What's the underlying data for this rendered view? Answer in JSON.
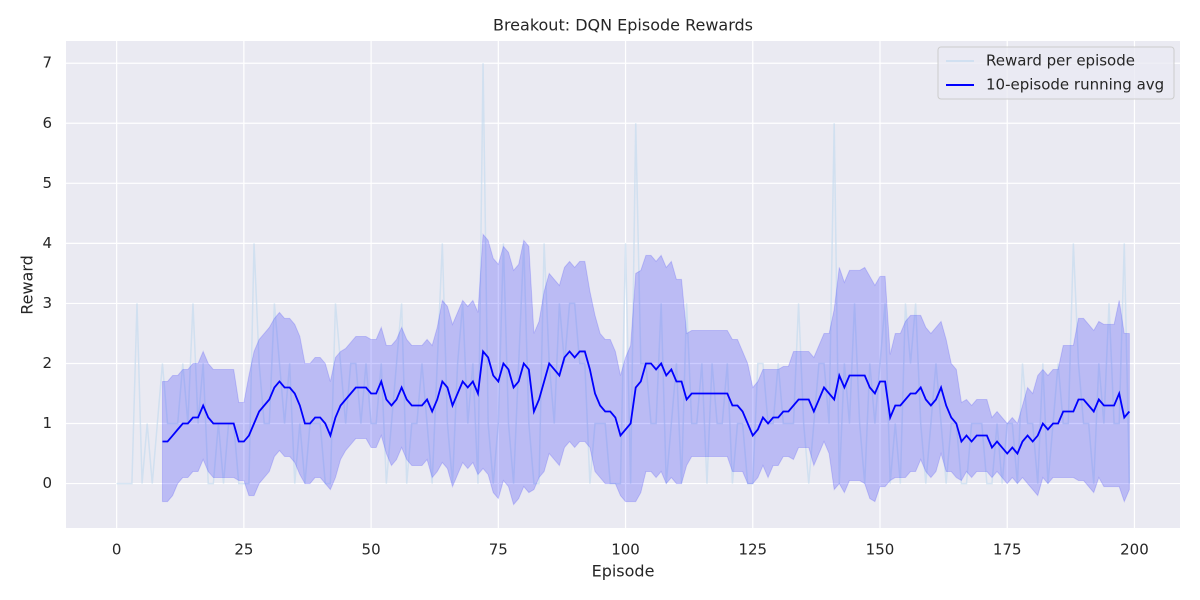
{
  "chart_data": {
    "type": "line",
    "title": "Breakout: DQN Episode Rewards",
    "x_label": "Episode",
    "y_label": "Reward",
    "xlim": [
      -9.95,
      208.95
    ],
    "ylim": [
      -0.74,
      7.37
    ],
    "xticks": [
      0,
      25,
      50,
      75,
      100,
      125,
      150,
      175,
      200
    ],
    "yticks": [
      0,
      1,
      2,
      3,
      4,
      5,
      6,
      7
    ],
    "grid": true,
    "legend": "upper right",
    "series": [
      {
        "name": "Reward per episode",
        "color": "#c6dbef",
        "x": [
          0,
          1,
          2,
          3,
          4,
          5,
          6,
          7,
          8,
          9,
          10,
          11,
          12,
          13,
          14,
          15,
          16,
          17,
          18,
          19,
          20,
          21,
          22,
          23,
          24,
          25,
          26,
          27,
          28,
          29,
          30,
          31,
          32,
          33,
          34,
          35,
          36,
          37,
          38,
          39,
          40,
          41,
          42,
          43,
          44,
          45,
          46,
          47,
          48,
          49,
          50,
          51,
          52,
          53,
          54,
          55,
          56,
          57,
          58,
          59,
          60,
          61,
          62,
          63,
          64,
          65,
          66,
          67,
          68,
          69,
          70,
          71,
          72,
          73,
          74,
          75,
          76,
          77,
          78,
          79,
          80,
          81,
          82,
          83,
          84,
          85,
          86,
          87,
          88,
          89,
          90,
          91,
          92,
          93,
          94,
          95,
          96,
          97,
          98,
          99,
          100,
          101,
          102,
          103,
          104,
          105,
          106,
          107,
          108,
          109,
          110,
          111,
          112,
          113,
          114,
          115,
          116,
          117,
          118,
          119,
          120,
          121,
          122,
          123,
          124,
          125,
          126,
          127,
          128,
          129,
          130,
          131,
          132,
          133,
          134,
          135,
          136,
          137,
          138,
          139,
          140,
          141,
          142,
          143,
          144,
          145,
          146,
          147,
          148,
          149,
          150,
          151,
          152,
          153,
          154,
          155,
          156,
          157,
          158,
          159,
          160,
          161,
          162,
          163,
          164,
          165,
          166,
          167,
          168,
          169,
          170,
          171,
          172,
          173,
          174,
          175,
          176,
          177,
          178,
          179,
          180,
          181,
          182,
          183,
          184,
          185,
          186,
          187,
          188,
          189,
          190,
          191,
          192,
          193,
          194,
          195,
          196,
          197,
          198,
          199
        ],
        "values": [
          0,
          0,
          0,
          0,
          3,
          0,
          1,
          0,
          1,
          2,
          1,
          1,
          1,
          2,
          1,
          3,
          1,
          2,
          0,
          0,
          1,
          0,
          1,
          1,
          0,
          0,
          0,
          4,
          2,
          1,
          1,
          3,
          2,
          1,
          2,
          0,
          1,
          0,
          1,
          1,
          1,
          0,
          0,
          3,
          2,
          1,
          2,
          2,
          1,
          2,
          1,
          1,
          2,
          0,
          1,
          2,
          3,
          0,
          1,
          1,
          2,
          1,
          0,
          2,
          4,
          1,
          0,
          2,
          3,
          1,
          2,
          0,
          7,
          1,
          0,
          1,
          4,
          1,
          0,
          2,
          4,
          1,
          0,
          0,
          4,
          2,
          1,
          3,
          2,
          3,
          3,
          2,
          2,
          0,
          1,
          1,
          1,
          0,
          0,
          0,
          4,
          0,
          6,
          2,
          2,
          1,
          1,
          3,
          0,
          1,
          2,
          0,
          3,
          1,
          1,
          2,
          0,
          2,
          1,
          1,
          2,
          0,
          1,
          1,
          0,
          0,
          2,
          2,
          1,
          1,
          2,
          1,
          1,
          1,
          3,
          1,
          0,
          1,
          2,
          2,
          1,
          6,
          0,
          2,
          1,
          3,
          1,
          0,
          2,
          1,
          2,
          3,
          0,
          1,
          0,
          3,
          2,
          3,
          1,
          0,
          1,
          2,
          1,
          0,
          1,
          1,
          0,
          0,
          1,
          1,
          1,
          0,
          0,
          1,
          0,
          1,
          1,
          0,
          2,
          1,
          1,
          0,
          2,
          0,
          1,
          2,
          1,
          1,
          4,
          2,
          1,
          1,
          0,
          2,
          1,
          3,
          1,
          1,
          4,
          0
        ]
      },
      {
        "name": "10-episode running avg",
        "color": "#0000ff",
        "band_color": "#0000ff",
        "x": [
          9,
          10,
          11,
          12,
          13,
          14,
          15,
          16,
          17,
          18,
          19,
          20,
          21,
          22,
          23,
          24,
          25,
          26,
          27,
          28,
          29,
          30,
          31,
          32,
          33,
          34,
          35,
          36,
          37,
          38,
          39,
          40,
          41,
          42,
          43,
          44,
          45,
          46,
          47,
          48,
          49,
          50,
          51,
          52,
          53,
          54,
          55,
          56,
          57,
          58,
          59,
          60,
          61,
          62,
          63,
          64,
          65,
          66,
          67,
          68,
          69,
          70,
          71,
          72,
          73,
          74,
          75,
          76,
          77,
          78,
          79,
          80,
          81,
          82,
          83,
          84,
          85,
          86,
          87,
          88,
          89,
          90,
          91,
          92,
          93,
          94,
          95,
          96,
          97,
          98,
          99,
          100,
          101,
          102,
          103,
          104,
          105,
          106,
          107,
          108,
          109,
          110,
          111,
          112,
          113,
          114,
          115,
          116,
          117,
          118,
          119,
          120,
          121,
          122,
          123,
          124,
          125,
          126,
          127,
          128,
          129,
          130,
          131,
          132,
          133,
          134,
          135,
          136,
          137,
          138,
          139,
          140,
          141,
          142,
          143,
          144,
          145,
          146,
          147,
          148,
          149,
          150,
          151,
          152,
          153,
          154,
          155,
          156,
          157,
          158,
          159,
          160,
          161,
          162,
          163,
          164,
          165,
          166,
          167,
          168,
          169,
          170,
          171,
          172,
          173,
          174,
          175,
          176,
          177,
          178,
          179,
          180,
          181,
          182,
          183,
          184,
          185,
          186,
          187,
          188,
          189,
          190,
          191,
          192,
          193,
          194,
          195,
          196,
          197,
          198,
          199
        ],
        "values": [
          0.7,
          0.7,
          0.8,
          0.9,
          1.0,
          1.0,
          1.1,
          1.1,
          1.3,
          1.1,
          1.0,
          1.0,
          1.0,
          1.0,
          1.0,
          0.7,
          0.7,
          0.8,
          1.0,
          1.2,
          1.3,
          1.4,
          1.6,
          1.7,
          1.6,
          1.6,
          1.5,
          1.3,
          1.0,
          1.0,
          1.1,
          1.1,
          1.0,
          0.8,
          1.1,
          1.3,
          1.4,
          1.5,
          1.6,
          1.6,
          1.6,
          1.5,
          1.5,
          1.7,
          1.4,
          1.3,
          1.4,
          1.6,
          1.4,
          1.3,
          1.3,
          1.3,
          1.4,
          1.2,
          1.4,
          1.7,
          1.6,
          1.3,
          1.5,
          1.7,
          1.6,
          1.7,
          1.5,
          2.2,
          2.1,
          1.8,
          1.7,
          2.0,
          1.9,
          1.6,
          1.7,
          2.0,
          1.9,
          1.2,
          1.4,
          1.7,
          2.0,
          1.9,
          1.8,
          2.1,
          2.2,
          2.1,
          2.2,
          2.2,
          1.9,
          1.5,
          1.3,
          1.2,
          1.2,
          1.1,
          0.8,
          0.9,
          1.0,
          1.6,
          1.7,
          2.0,
          2.0,
          1.9,
          2.0,
          1.8,
          1.9,
          1.7,
          1.7,
          1.4,
          1.5,
          1.5,
          1.5,
          1.5,
          1.5,
          1.5,
          1.5,
          1.5,
          1.3,
          1.3,
          1.2,
          1.0,
          0.8,
          0.9,
          1.1,
          1.0,
          1.1,
          1.1,
          1.2,
          1.2,
          1.3,
          1.4,
          1.4,
          1.4,
          1.2,
          1.4,
          1.6,
          1.5,
          1.4,
          1.8,
          1.6,
          1.8,
          1.8,
          1.8,
          1.8,
          1.6,
          1.5,
          1.7,
          1.7,
          1.1,
          1.3,
          1.3,
          1.4,
          1.5,
          1.5,
          1.6,
          1.4,
          1.3,
          1.4,
          1.6,
          1.3,
          1.1,
          1.0,
          0.7,
          0.8,
          0.7,
          0.8,
          0.8,
          0.8,
          0.6,
          0.7,
          0.6,
          0.5,
          0.6,
          0.5,
          0.7,
          0.8,
          0.7,
          0.8,
          1.0,
          0.9,
          1.0,
          1.0,
          1.2,
          1.2,
          1.2,
          1.4,
          1.4,
          1.3,
          1.2,
          1.4,
          1.3,
          1.3,
          1.3,
          1.5,
          1.1,
          1.2
        ],
        "band_lower": [
          -0.3,
          -0.3,
          -0.2,
          0,
          0.1,
          0.1,
          0.2,
          0.2,
          0.4,
          0.2,
          0.1,
          0.1,
          0.1,
          0.1,
          0.1,
          0.05,
          0.05,
          -0.2,
          -0.2,
          0,
          0.1,
          0.2,
          0.45,
          0.55,
          0.45,
          0.45,
          0.35,
          0.15,
          0,
          0,
          0.1,
          0.1,
          0,
          -0.1,
          0.1,
          0.4,
          0.55,
          0.65,
          0.75,
          0.75,
          0.75,
          0.6,
          0.6,
          0.8,
          0.5,
          0.3,
          0.4,
          0.6,
          0.4,
          0.3,
          0.3,
          0.3,
          0.4,
          0.1,
          0.2,
          0.35,
          0.25,
          -0.05,
          0.15,
          0.35,
          0.25,
          0.35,
          0.15,
          0.25,
          0.15,
          -0.15,
          -0.25,
          0.05,
          -0.05,
          -0.35,
          -0.25,
          -0.05,
          -0.15,
          -0.1,
          0.1,
          0.2,
          0.5,
          0.4,
          0.3,
          0.6,
          0.7,
          0.6,
          0.7,
          0.7,
          0.6,
          0.2,
          0.1,
          0,
          0,
          0,
          -0.2,
          -0.3,
          -0.3,
          -0.3,
          -0.15,
          0.2,
          0.2,
          0.1,
          0.2,
          0,
          0.1,
          0,
          0,
          0.3,
          0.45,
          0.45,
          0.45,
          0.45,
          0.45,
          0.45,
          0.45,
          0.45,
          0.2,
          0.2,
          0.2,
          0,
          0,
          0.1,
          0.3,
          0.1,
          0.3,
          0.3,
          0.45,
          0.45,
          0.4,
          0.6,
          0.6,
          0.6,
          0.3,
          0.5,
          0.7,
          0.5,
          -0.1,
          0,
          -0.15,
          0.05,
          0.05,
          0.05,
          0,
          -0.25,
          -0.3,
          -0.05,
          -0.05,
          0.05,
          0.1,
          0.1,
          0.1,
          0.2,
          0.2,
          0.4,
          0.2,
          0.1,
          0.2,
          0.5,
          0.2,
          0.2,
          0.1,
          0.05,
          0.2,
          0.1,
          0.2,
          0.2,
          0.2,
          0.1,
          0.2,
          0.1,
          0,
          0.1,
          0,
          0.1,
          0,
          -0.1,
          -0.2,
          0.1,
          0,
          0.1,
          0.1,
          0.1,
          0.1,
          0.1,
          0.05,
          0.05,
          -0.05,
          -0.15,
          0.1,
          -0.05,
          -0.05,
          -0.05,
          -0.05,
          -0.3,
          -0.1
        ],
        "band_upper": [
          1.7,
          1.7,
          1.8,
          1.8,
          1.9,
          1.9,
          2.0,
          2.0,
          2.2,
          2.0,
          1.9,
          1.9,
          1.9,
          1.9,
          1.9,
          1.35,
          1.35,
          1.8,
          2.2,
          2.4,
          2.5,
          2.6,
          2.75,
          2.85,
          2.75,
          2.75,
          2.65,
          2.45,
          2.0,
          2.0,
          2.1,
          2.1,
          2.0,
          1.7,
          2.1,
          2.2,
          2.25,
          2.35,
          2.45,
          2.45,
          2.45,
          2.4,
          2.4,
          2.6,
          2.3,
          2.3,
          2.4,
          2.6,
          2.4,
          2.3,
          2.3,
          2.3,
          2.4,
          2.3,
          2.6,
          3.05,
          2.95,
          2.65,
          2.85,
          3.05,
          2.95,
          3.05,
          2.85,
          4.15,
          4.05,
          3.75,
          3.65,
          3.95,
          3.85,
          3.55,
          3.65,
          4.05,
          3.95,
          2.5,
          2.7,
          3.2,
          3.5,
          3.4,
          3.3,
          3.6,
          3.7,
          3.6,
          3.7,
          3.7,
          3.2,
          2.8,
          2.5,
          2.4,
          2.4,
          2.2,
          1.8,
          2.1,
          2.3,
          3.5,
          3.55,
          3.8,
          3.8,
          3.7,
          3.8,
          3.6,
          3.7,
          3.4,
          3.4,
          2.5,
          2.55,
          2.55,
          2.55,
          2.55,
          2.55,
          2.55,
          2.55,
          2.55,
          2.4,
          2.4,
          2.2,
          2.0,
          1.6,
          1.7,
          1.9,
          1.9,
          1.9,
          1.9,
          1.95,
          1.95,
          2.2,
          2.2,
          2.2,
          2.2,
          2.1,
          2.3,
          2.5,
          2.5,
          2.9,
          3.6,
          3.35,
          3.55,
          3.55,
          3.55,
          3.6,
          3.45,
          3.3,
          3.45,
          3.45,
          2.15,
          2.5,
          2.5,
          2.7,
          2.8,
          2.8,
          2.8,
          2.6,
          2.5,
          2.6,
          2.7,
          2.4,
          2.0,
          1.9,
          1.35,
          1.4,
          1.3,
          1.4,
          1.4,
          1.4,
          1.1,
          1.2,
          1.1,
          1.0,
          1.1,
          1.0,
          1.3,
          1.6,
          1.5,
          1.8,
          1.9,
          1.8,
          1.9,
          1.9,
          2.3,
          2.3,
          2.3,
          2.75,
          2.75,
          2.65,
          2.55,
          2.7,
          2.65,
          2.65,
          2.65,
          3.05,
          2.5,
          2.5
        ]
      }
    ]
  }
}
